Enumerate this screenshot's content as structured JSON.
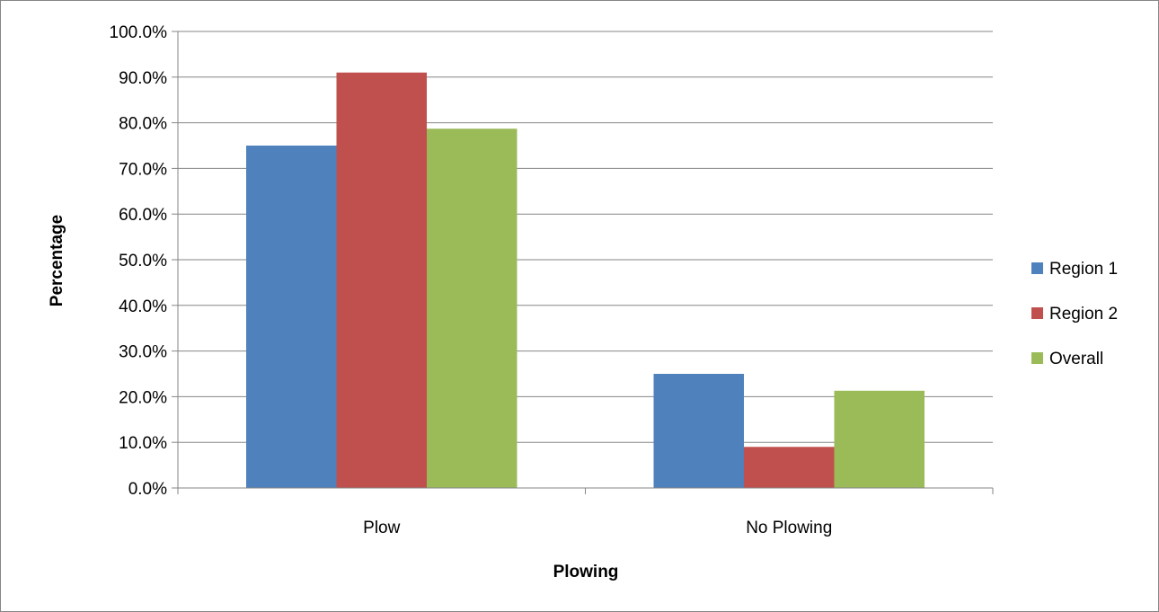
{
  "chart_data": {
    "type": "bar",
    "categories": [
      "Plow",
      "No Plowing"
    ],
    "series": [
      {
        "name": "Region 1",
        "values": [
          75.0,
          25.0
        ],
        "color": "#4F81BD"
      },
      {
        "name": "Region 2",
        "values": [
          91.0,
          9.0
        ],
        "color": "#C0504D"
      },
      {
        "name": "Overall",
        "values": [
          78.7,
          21.3
        ],
        "color": "#9BBB59"
      }
    ],
    "title": "",
    "xlabel": "Plowing",
    "ylabel": "Percentage",
    "ylim": [
      0,
      100
    ],
    "yticks": [
      0,
      10,
      20,
      30,
      40,
      50,
      60,
      70,
      80,
      90,
      100
    ],
    "ytick_labels": [
      "0.0%",
      "10.0%",
      "20.0%",
      "30.0%",
      "40.0%",
      "50.0%",
      "60.0%",
      "70.0%",
      "80.0%",
      "90.0%",
      "100.0%"
    ],
    "grid": true,
    "legend_position": "right"
  }
}
